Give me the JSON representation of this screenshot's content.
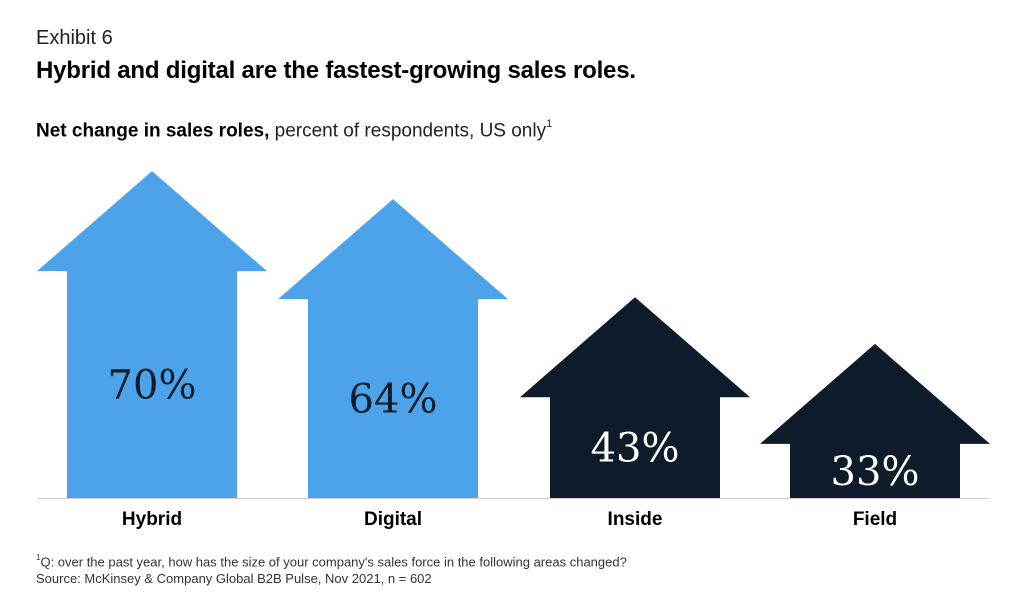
{
  "header": {
    "exhibit": "Exhibit 6",
    "title": "Hybrid and digital are the fastest-growing sales roles.",
    "subtitle_bold": "Net change in sales roles,",
    "subtitle_rest": " percent of respondents, US only",
    "subtitle_sup": "1"
  },
  "chart_data": {
    "type": "bar",
    "shape": "arrow",
    "title": "Net change in sales roles, percent of respondents, US only",
    "categories": [
      "Hybrid",
      "Digital",
      "Inside",
      "Field"
    ],
    "values": [
      70,
      64,
      43,
      33
    ],
    "value_labels": [
      "70%",
      "64%",
      "43%",
      "33%"
    ],
    "colors": [
      "#4da3ea",
      "#4da3ea",
      "#0d1b2a",
      "#0d1b2a"
    ],
    "label_colors": [
      "#0d1b2a",
      "#0d1b2a",
      "#ffffff",
      "#ffffff"
    ],
    "ylim": [
      0,
      100
    ],
    "unit": "%"
  },
  "footnote": {
    "sup": "1",
    "question": "Q: over the past year, how has the size of your company's sales force in the following areas changed?",
    "source": "Source: McKinsey & Company Global B2B Pulse, Nov 2021, n = 602"
  }
}
